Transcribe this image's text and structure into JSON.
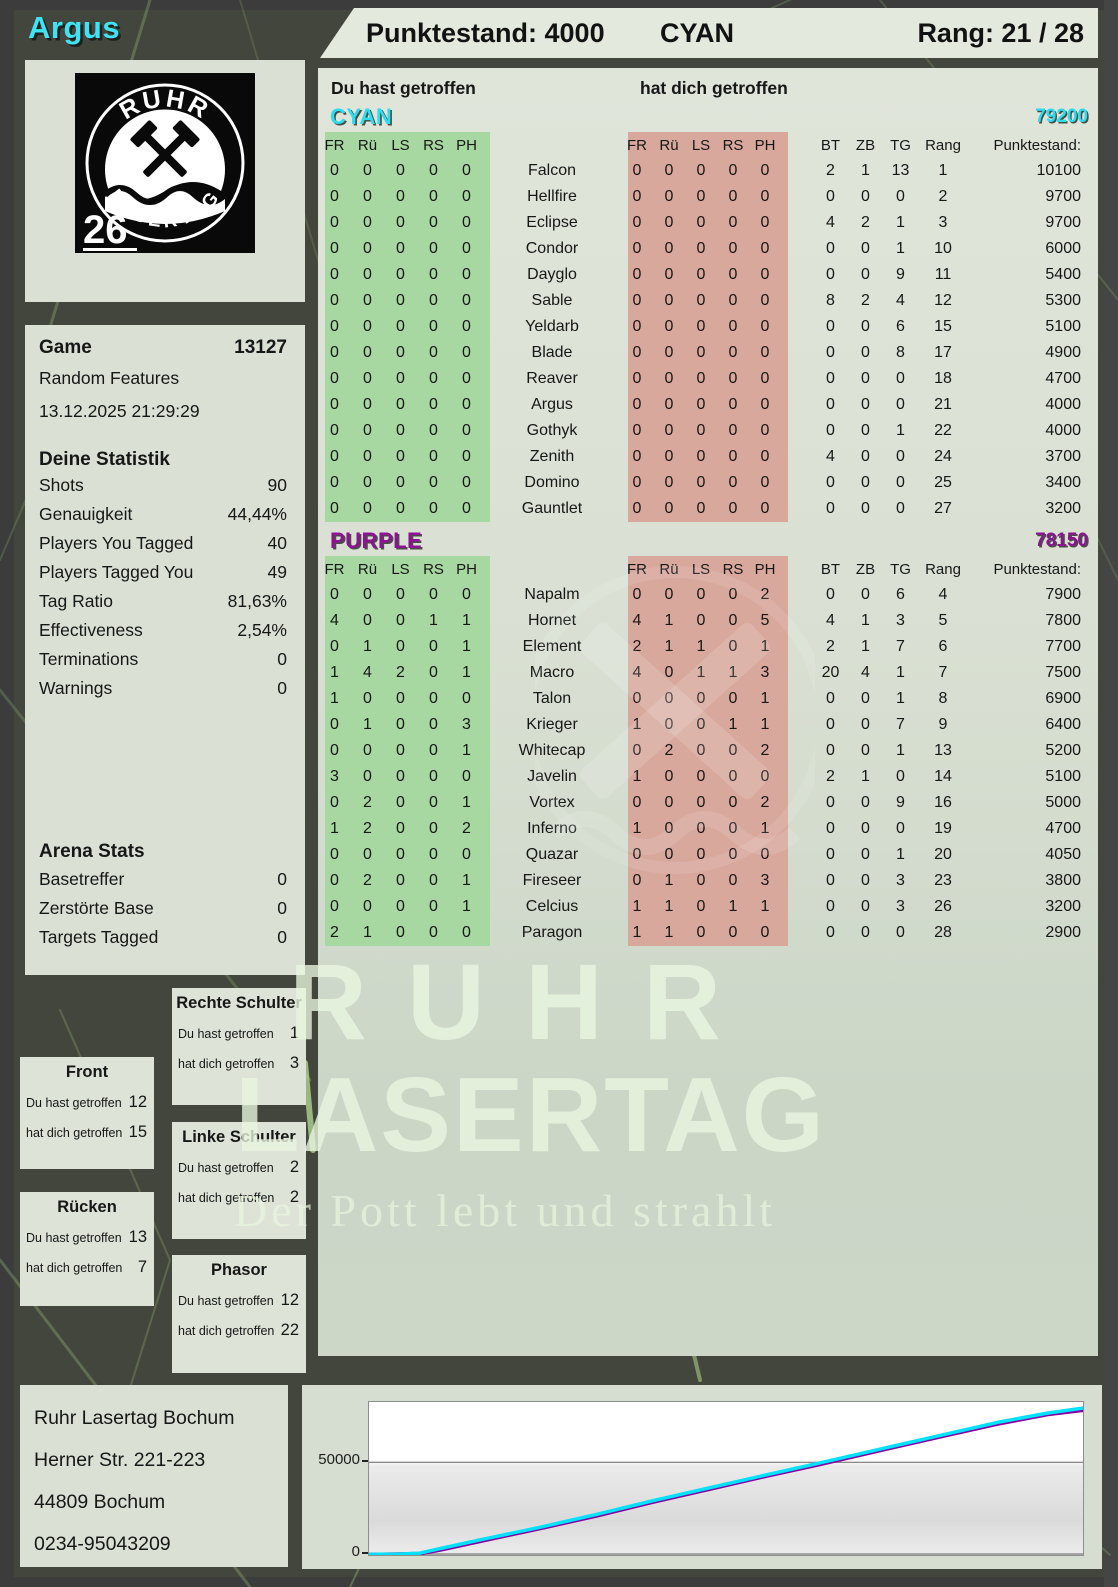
{
  "player": {
    "name": "Argus",
    "logo": {
      "arc_top": "RUHR",
      "arc_bottom": "LASERTAG",
      "number": "26"
    }
  },
  "header_band": {
    "score": "Punktestand: 4000",
    "team": "CYAN",
    "rank": "Rang: 21 / 28"
  },
  "labels": {
    "you_hit": "Du hast getroffen",
    "they_hit": "hat dich getroffen"
  },
  "sidebar": {
    "game": {
      "label": "Game",
      "number": "13127",
      "mode": "Random Features",
      "datetime": "13.12.2025 21:29:29"
    },
    "stats": {
      "title": "Deine Statistik",
      "rows": [
        [
          "Shots",
          "90"
        ],
        [
          "Genauigkeit",
          "44,44%"
        ],
        [
          "Players You Tagged",
          "40"
        ],
        [
          "Players Tagged You",
          "49"
        ],
        [
          "Tag Ratio",
          "81,63%"
        ],
        [
          "Effectiveness",
          "2,54%"
        ],
        [
          "Terminations",
          "0"
        ],
        [
          "Warnings",
          "0"
        ]
      ]
    },
    "arena": {
      "title": "Arena Stats",
      "rows": [
        [
          "Basetreffer",
          "0"
        ],
        [
          "Zerstörte Base",
          "0"
        ],
        [
          "Targets Tagged",
          "0"
        ]
      ]
    },
    "bodyparts": [
      {
        "title": "Front",
        "you": "12",
        "them": "15"
      },
      {
        "title": "Rücken",
        "you": "13",
        "them": "7"
      },
      {
        "title": "Rechte Schulter",
        "you": "1",
        "them": "3"
      },
      {
        "title": "Linke Schulter",
        "you": "2",
        "them": "2"
      },
      {
        "title": "Phasor",
        "you": "12",
        "them": "22"
      }
    ],
    "address": [
      "Ruhr Lasertag Bochum",
      "Herner Str. 221-223",
      "44809 Bochum",
      "0234-95043209"
    ]
  },
  "table": {
    "hit_cols": [
      "FR",
      "Rü",
      "LS",
      "RS",
      "PH"
    ],
    "stat_cols": [
      "BT",
      "ZB",
      "TG",
      "Rang",
      "Punktestand:"
    ]
  },
  "teams": [
    {
      "name": "CYAN",
      "color": "#2cdcf0",
      "total": "79200",
      "rows": [
        {
          "you": [
            0,
            0,
            0,
            0,
            0
          ],
          "name": "Falcon",
          "them": [
            0,
            0,
            0,
            0,
            0
          ],
          "bt": 2,
          "zb": 1,
          "tg": 13,
          "rang": 1,
          "score": 10100
        },
        {
          "you": [
            0,
            0,
            0,
            0,
            0
          ],
          "name": "Hellfire",
          "them": [
            0,
            0,
            0,
            0,
            0
          ],
          "bt": 0,
          "zb": 0,
          "tg": 0,
          "rang": 2,
          "score": 9700
        },
        {
          "you": [
            0,
            0,
            0,
            0,
            0
          ],
          "name": "Eclipse",
          "them": [
            0,
            0,
            0,
            0,
            0
          ],
          "bt": 4,
          "zb": 2,
          "tg": 1,
          "rang": 3,
          "score": 9700
        },
        {
          "you": [
            0,
            0,
            0,
            0,
            0
          ],
          "name": "Condor",
          "them": [
            0,
            0,
            0,
            0,
            0
          ],
          "bt": 0,
          "zb": 0,
          "tg": 1,
          "rang": 10,
          "score": 6000
        },
        {
          "you": [
            0,
            0,
            0,
            0,
            0
          ],
          "name": "Dayglo",
          "them": [
            0,
            0,
            0,
            0,
            0
          ],
          "bt": 0,
          "zb": 0,
          "tg": 9,
          "rang": 11,
          "score": 5400
        },
        {
          "you": [
            0,
            0,
            0,
            0,
            0
          ],
          "name": "Sable",
          "them": [
            0,
            0,
            0,
            0,
            0
          ],
          "bt": 8,
          "zb": 2,
          "tg": 4,
          "rang": 12,
          "score": 5300
        },
        {
          "you": [
            0,
            0,
            0,
            0,
            0
          ],
          "name": "Yeldarb",
          "them": [
            0,
            0,
            0,
            0,
            0
          ],
          "bt": 0,
          "zb": 0,
          "tg": 6,
          "rang": 15,
          "score": 5100
        },
        {
          "you": [
            0,
            0,
            0,
            0,
            0
          ],
          "name": "Blade",
          "them": [
            0,
            0,
            0,
            0,
            0
          ],
          "bt": 0,
          "zb": 0,
          "tg": 8,
          "rang": 17,
          "score": 4900
        },
        {
          "you": [
            0,
            0,
            0,
            0,
            0
          ],
          "name": "Reaver",
          "them": [
            0,
            0,
            0,
            0,
            0
          ],
          "bt": 0,
          "zb": 0,
          "tg": 0,
          "rang": 18,
          "score": 4700
        },
        {
          "you": [
            0,
            0,
            0,
            0,
            0
          ],
          "name": "Argus",
          "them": [
            0,
            0,
            0,
            0,
            0
          ],
          "bt": 0,
          "zb": 0,
          "tg": 0,
          "rang": 21,
          "score": 4000
        },
        {
          "you": [
            0,
            0,
            0,
            0,
            0
          ],
          "name": "Gothyk",
          "them": [
            0,
            0,
            0,
            0,
            0
          ],
          "bt": 0,
          "zb": 0,
          "tg": 1,
          "rang": 22,
          "score": 4000
        },
        {
          "you": [
            0,
            0,
            0,
            0,
            0
          ],
          "name": "Zenith",
          "them": [
            0,
            0,
            0,
            0,
            0
          ],
          "bt": 4,
          "zb": 0,
          "tg": 0,
          "rang": 24,
          "score": 3700
        },
        {
          "you": [
            0,
            0,
            0,
            0,
            0
          ],
          "name": "Domino",
          "them": [
            0,
            0,
            0,
            0,
            0
          ],
          "bt": 0,
          "zb": 0,
          "tg": 0,
          "rang": 25,
          "score": 3400
        },
        {
          "you": [
            0,
            0,
            0,
            0,
            0
          ],
          "name": "Gauntlet",
          "them": [
            0,
            0,
            0,
            0,
            0
          ],
          "bt": 0,
          "zb": 0,
          "tg": 0,
          "rang": 27,
          "score": 3200
        }
      ]
    },
    {
      "name": "PURPLE",
      "color": "#8c1391",
      "total": "78150",
      "rows": [
        {
          "you": [
            0,
            0,
            0,
            0,
            0
          ],
          "name": "Napalm",
          "them": [
            0,
            0,
            0,
            0,
            2
          ],
          "bt": 0,
          "zb": 0,
          "tg": 6,
          "rang": 4,
          "score": 7900
        },
        {
          "you": [
            4,
            0,
            0,
            1,
            1
          ],
          "name": "Hornet",
          "them": [
            4,
            1,
            0,
            0,
            5
          ],
          "bt": 4,
          "zb": 1,
          "tg": 3,
          "rang": 5,
          "score": 7800
        },
        {
          "you": [
            0,
            1,
            0,
            0,
            1
          ],
          "name": "Element",
          "them": [
            2,
            1,
            1,
            0,
            1
          ],
          "bt": 2,
          "zb": 1,
          "tg": 7,
          "rang": 6,
          "score": 7700
        },
        {
          "you": [
            1,
            4,
            2,
            0,
            1
          ],
          "name": "Macro",
          "them": [
            4,
            0,
            1,
            1,
            3
          ],
          "bt": 20,
          "zb": 4,
          "tg": 1,
          "rang": 7,
          "score": 7500
        },
        {
          "you": [
            1,
            0,
            0,
            0,
            0
          ],
          "name": "Talon",
          "them": [
            0,
            0,
            0,
            0,
            1
          ],
          "bt": 0,
          "zb": 0,
          "tg": 1,
          "rang": 8,
          "score": 6900
        },
        {
          "you": [
            0,
            1,
            0,
            0,
            3
          ],
          "name": "Krieger",
          "them": [
            1,
            0,
            0,
            1,
            1
          ],
          "bt": 0,
          "zb": 0,
          "tg": 7,
          "rang": 9,
          "score": 6400
        },
        {
          "you": [
            0,
            0,
            0,
            0,
            1
          ],
          "name": "Whitecap",
          "them": [
            0,
            2,
            0,
            0,
            2
          ],
          "bt": 0,
          "zb": 0,
          "tg": 1,
          "rang": 13,
          "score": 5200
        },
        {
          "you": [
            3,
            0,
            0,
            0,
            0
          ],
          "name": "Javelin",
          "them": [
            1,
            0,
            0,
            0,
            0
          ],
          "bt": 2,
          "zb": 1,
          "tg": 0,
          "rang": 14,
          "score": 5100
        },
        {
          "you": [
            0,
            2,
            0,
            0,
            1
          ],
          "name": "Vortex",
          "them": [
            0,
            0,
            0,
            0,
            2
          ],
          "bt": 0,
          "zb": 0,
          "tg": 9,
          "rang": 16,
          "score": 5000
        },
        {
          "you": [
            1,
            2,
            0,
            0,
            2
          ],
          "name": "Inferno",
          "them": [
            1,
            0,
            0,
            0,
            1
          ],
          "bt": 0,
          "zb": 0,
          "tg": 0,
          "rang": 19,
          "score": 4700
        },
        {
          "you": [
            0,
            0,
            0,
            0,
            0
          ],
          "name": "Quazar",
          "them": [
            0,
            0,
            0,
            0,
            0
          ],
          "bt": 0,
          "zb": 0,
          "tg": 1,
          "rang": 20,
          "score": 4050
        },
        {
          "you": [
            0,
            2,
            0,
            0,
            1
          ],
          "name": "Fireseer",
          "them": [
            0,
            1,
            0,
            0,
            3
          ],
          "bt": 0,
          "zb": 0,
          "tg": 3,
          "rang": 23,
          "score": 3800
        },
        {
          "you": [
            0,
            0,
            0,
            0,
            1
          ],
          "name": "Celcius",
          "them": [
            1,
            1,
            0,
            1,
            1
          ],
          "bt": 0,
          "zb": 0,
          "tg": 3,
          "rang": 26,
          "score": 3200
        },
        {
          "you": [
            2,
            1,
            0,
            0,
            0
          ],
          "name": "Paragon",
          "them": [
            1,
            1,
            0,
            0,
            0
          ],
          "bt": 0,
          "zb": 0,
          "tg": 0,
          "rang": 28,
          "score": 2900
        }
      ]
    }
  ],
  "watermark": {
    "line1": "RUHR",
    "line2": "LASERTAG",
    "motto": "Der Pott lebt und strahlt"
  },
  "chart_data": {
    "type": "line",
    "title": "",
    "xlabel": "",
    "ylabel": "",
    "ylim": [
      0,
      82500
    ],
    "gridline_value": 50000,
    "yticks": [
      "50000",
      "0"
    ],
    "legend_position": "none",
    "series": [
      {
        "key": "purple",
        "name": "PURPLE",
        "color": "#8a00a0",
        "points": [
          [
            0,
            200
          ],
          [
            0.04,
            400
          ],
          [
            0.07,
            700
          ],
          [
            0.1,
            2800
          ],
          [
            0.16,
            7800
          ],
          [
            0.24,
            14400
          ],
          [
            0.32,
            21300
          ],
          [
            0.4,
            28800
          ],
          [
            0.48,
            35800
          ],
          [
            0.56,
            42900
          ],
          [
            0.63,
            48800
          ],
          [
            0.72,
            56800
          ],
          [
            0.8,
            63800
          ],
          [
            0.88,
            70700
          ],
          [
            0.95,
            75800
          ],
          [
            1,
            78150
          ]
        ]
      },
      {
        "key": "cyan",
        "name": "CYAN",
        "color": "#00e0ff",
        "points": [
          [
            0,
            300
          ],
          [
            0.04,
            500
          ],
          [
            0.07,
            900
          ],
          [
            0.1,
            3500
          ],
          [
            0.16,
            8500
          ],
          [
            0.24,
            15000
          ],
          [
            0.32,
            22000
          ],
          [
            0.4,
            29500
          ],
          [
            0.48,
            36500
          ],
          [
            0.56,
            43500
          ],
          [
            0.63,
            49500
          ],
          [
            0.72,
            57500
          ],
          [
            0.8,
            64500
          ],
          [
            0.88,
            71500
          ],
          [
            0.95,
            76500
          ],
          [
            1,
            79200
          ]
        ]
      }
    ]
  }
}
